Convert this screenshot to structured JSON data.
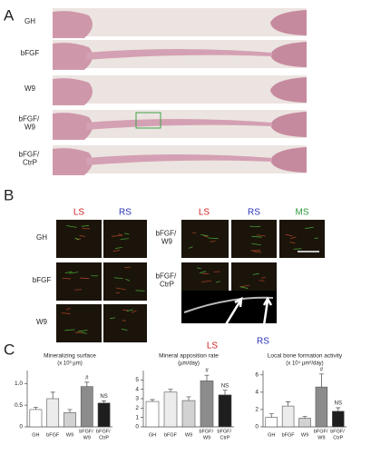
{
  "panel_labels": [
    "A",
    "B",
    "C"
  ],
  "panel_a": {
    "rows": [
      "GH",
      "bFGF",
      "W9",
      "bFGF/ W9",
      "bFGF/ CtrP"
    ]
  },
  "panel_b": {
    "columns_left": [
      "LS",
      "RS"
    ],
    "columns_right": [
      "LS",
      "RS",
      "MS"
    ],
    "rows_left": [
      "GH",
      "bFGF",
      "W9"
    ],
    "rows_right": [
      "bFGF/ W9",
      "bFGF/ CtrP"
    ],
    "diagram_labels": [
      "LS",
      "RS"
    ]
  },
  "chart_data": [
    {
      "type": "bar",
      "title": "Mineralizing surface",
      "subtitle": "(x 10³ µm)",
      "categories": [
        "GH",
        "bFGF",
        "W9",
        "bFGF/ W9",
        "bFGF/ CtrP"
      ],
      "values": [
        0.4,
        0.65,
        0.33,
        0.93,
        0.55
      ],
      "errors": [
        0.05,
        0.15,
        0.07,
        0.1,
        0.05
      ],
      "colors": [
        "#ffffff",
        "#ececec",
        "#d2d2d2",
        "#8c8c8c",
        "#1e1e1e"
      ],
      "annotations": [
        null,
        null,
        null,
        "#",
        "NS"
      ],
      "ylim": [
        0,
        1.3
      ],
      "yticks": [
        0,
        0.5,
        {
          "value": 1,
          "label": "1.0"
        }
      ]
    },
    {
      "type": "bar",
      "title": "Mineral apposition rate",
      "subtitle": "(µm/day)",
      "categories": [
        "GH",
        "bFGF",
        "W9",
        "bFGF/ W9",
        "bFGF/ CtrP"
      ],
      "values": [
        2.7,
        3.7,
        2.8,
        4.9,
        3.4
      ],
      "errors": [
        0.2,
        0.3,
        0.4,
        0.6,
        0.5
      ],
      "colors": [
        "#ffffff",
        "#ececec",
        "#d2d2d2",
        "#8c8c8c",
        "#1e1e1e"
      ],
      "annotations": [
        null,
        null,
        null,
        "#",
        "NS"
      ],
      "ylim": [
        0,
        6
      ],
      "yticks": [
        0,
        1,
        2,
        3,
        4,
        5
      ]
    },
    {
      "type": "bar",
      "title": "Local bone formation activity",
      "subtitle": "(x 10⁴ µm²/day)",
      "categories": [
        "GH",
        "bFGF",
        "W9",
        "bFGF/ W9",
        "bFGF/ CtrP"
      ],
      "values": [
        1.1,
        2.4,
        1.0,
        4.6,
        1.8
      ],
      "errors": [
        0.4,
        0.5,
        0.2,
        1.5,
        0.4
      ],
      "colors": [
        "#ffffff",
        "#ececec",
        "#d2d2d2",
        "#8c8c8c",
        "#1e1e1e"
      ],
      "annotations": [
        null,
        null,
        null,
        "#",
        "NS"
      ],
      "ylim": [
        0,
        6.5
      ],
      "yticks": [
        0,
        2,
        4,
        6
      ]
    }
  ]
}
